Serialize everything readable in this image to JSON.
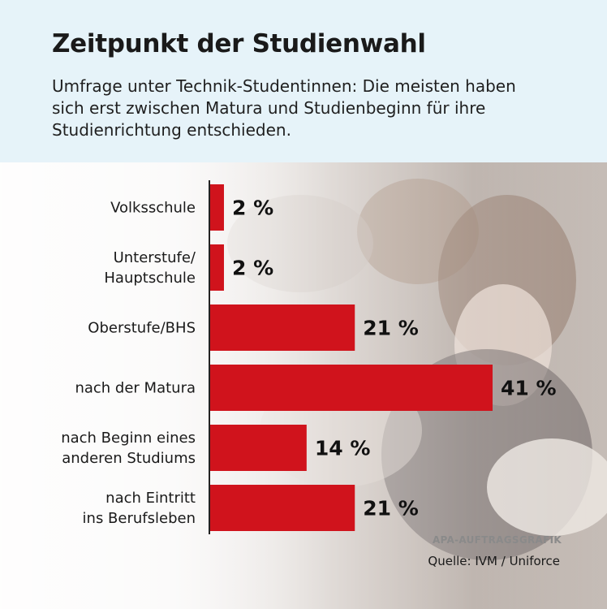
{
  "header": {
    "title": "Zeitpunkt der Studienwahl",
    "subtitle": "Umfrage unter Technik-Studentinnen: Die meisten haben sich erst zwischen Matura und Studienbeginn für ihre Studienrichtung entschieden."
  },
  "chart_data": {
    "type": "bar",
    "orientation": "horizontal",
    "title": "Zeitpunkt der Studienwahl",
    "subtitle": "Umfrage unter Technik-Studentinnen: Die meisten haben sich erst zwischen Matura und Studienbeginn für ihre Studienrichtung entschieden.",
    "categories": [
      [
        "Volksschule"
      ],
      [
        "Unterstufe/",
        "Hauptschule"
      ],
      [
        "Oberstufe/BHS"
      ],
      [
        "nach der Matura"
      ],
      [
        "nach Beginn eines",
        "anderen Studiums"
      ],
      [
        "nach Eintritt",
        "ins Berufsleben"
      ]
    ],
    "values": [
      2,
      2,
      21,
      41,
      14,
      21
    ],
    "value_labels": [
      "2 %",
      "2 %",
      "21 %",
      "41 %",
      "14 %",
      "21 %"
    ],
    "xlim": [
      0,
      41
    ],
    "bar_color": "#d0131c",
    "grid": false,
    "xlabel": "",
    "ylabel": ""
  },
  "footer": {
    "credit": "APA-AUFTRAGSGRAFIK",
    "source": "Quelle: IVM / Uniforce"
  },
  "colors": {
    "header_bg": "#e6f3f9",
    "bar": "#d0131c",
    "axis": "#222222"
  }
}
